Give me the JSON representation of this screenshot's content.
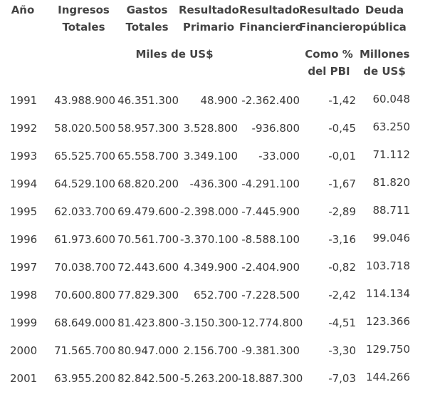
{
  "headers": {
    "year": [
      "Año"
    ],
    "ingresos": [
      "Ingresos",
      "Totales"
    ],
    "gastos": [
      "Gastos",
      "Totales"
    ],
    "res_primario": [
      "Resultado",
      "Primario"
    ],
    "res_financiero": [
      "Resultado",
      "Financiero"
    ],
    "res_fin_pbi": [
      "Resultado",
      "Financiero"
    ],
    "deuda": [
      "Deuda",
      "pública"
    ]
  },
  "subheaders": {
    "miles": "Miles de US$",
    "pbi": [
      "Como %",
      "del PBI"
    ],
    "millones": [
      "Millones",
      "de US$"
    ]
  },
  "rows": [
    {
      "year": "1991",
      "ingresos": "43.988.900",
      "gastos": "46.351.300",
      "primario": "48.900",
      "financiero": "-2.362.400",
      "pbi": "-1,42",
      "deuda": "60.048"
    },
    {
      "year": "1992",
      "ingresos": "58.020.500",
      "gastos": "58.957.300",
      "primario": "3.528.800",
      "financiero": "-936.800",
      "pbi": "-0,45",
      "deuda": "63.250"
    },
    {
      "year": "1993",
      "ingresos": "65.525.700",
      "gastos": "65.558.700",
      "primario": "3.349.100",
      "financiero": "-33.000",
      "pbi": "-0,01",
      "deuda": "71.112"
    },
    {
      "year": "1994",
      "ingresos": "64.529.100",
      "gastos": "68.820.200",
      "primario": "-436.300",
      "financiero": "-4.291.100",
      "pbi": "-1,67",
      "deuda": "81.820"
    },
    {
      "year": "1995",
      "ingresos": "62.033.700",
      "gastos": "69.479.600",
      "primario": "-2.398.000",
      "financiero": "-7.445.900",
      "pbi": "-2,89",
      "deuda": "88.711"
    },
    {
      "year": "1996",
      "ingresos": "61.973.600",
      "gastos": "70.561.700",
      "primario": "-3.370.100",
      "financiero": "-8.588.100",
      "pbi": "-3,16",
      "deuda": "99.046"
    },
    {
      "year": "1997",
      "ingresos": "70.038.700",
      "gastos": "72.443.600",
      "primario": "4.349.900",
      "financiero": "-2.404.900",
      "pbi": "-0,82",
      "deuda": "103.718"
    },
    {
      "year": "1998",
      "ingresos": "70.600.800",
      "gastos": "77.829.300",
      "primario": "652.700",
      "financiero": "-7.228.500",
      "pbi": "-2,42",
      "deuda": "114.134"
    },
    {
      "year": "1999",
      "ingresos": "68.649.000",
      "gastos": "81.423.800",
      "primario": "-3.150.300",
      "financiero": "-12.774.800",
      "pbi": "-4,51",
      "deuda": "123.366"
    },
    {
      "year": "2000",
      "ingresos": "71.565.700",
      "gastos": "80.947.000",
      "primario": "2.156.700",
      "financiero": "-9.381.300",
      "pbi": "-3,30",
      "deuda": "129.750"
    },
    {
      "year": "2001",
      "ingresos": "63.955.200",
      "gastos": "82.842.500",
      "primario": "-5.263.200",
      "financiero": "-18.887.300",
      "pbi": "-7,03",
      "deuda": "144.266"
    }
  ]
}
